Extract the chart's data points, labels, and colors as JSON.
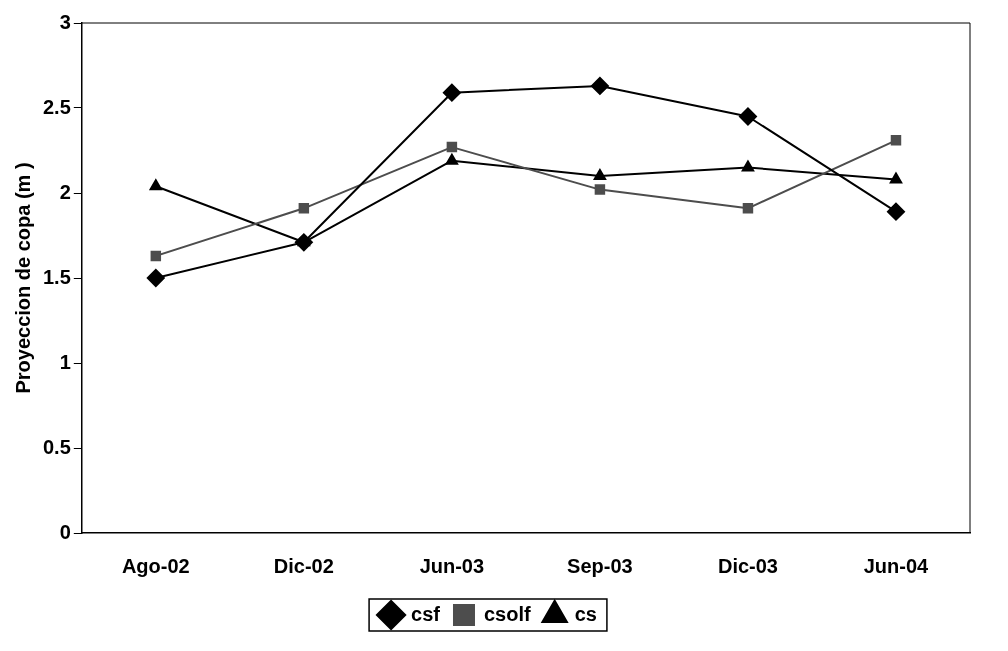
{
  "chart_data": {
    "type": "line",
    "ylabel": "Proyeccion de copa (m )",
    "categories": [
      "Ago-02",
      "Dic-02",
      "Jun-03",
      "Sep-03",
      "Dic-03",
      "Jun-04"
    ],
    "series": [
      {
        "name": "csf",
        "color": "#000000",
        "marker": "diamond",
        "values": [
          1.5,
          1.71,
          2.59,
          2.63,
          2.45,
          1.89
        ]
      },
      {
        "name": "csolf",
        "color": "#4d4d4d",
        "marker": "square",
        "values": [
          1.63,
          1.91,
          2.27,
          2.02,
          1.91,
          2.31
        ]
      },
      {
        "name": "cs",
        "color": "#000000",
        "marker": "triangle",
        "values": [
          2.04,
          1.71,
          2.19,
          2.1,
          2.15,
          2.08
        ]
      }
    ],
    "ylim": [
      0,
      3
    ],
    "yticks": [
      0,
      0.5,
      1,
      1.5,
      2,
      2.5,
      3
    ],
    "grid": false,
    "legend": "bottom",
    "line_style": "solid"
  }
}
